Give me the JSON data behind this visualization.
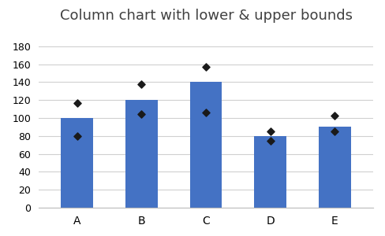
{
  "categories": [
    "A",
    "B",
    "C",
    "D",
    "E"
  ],
  "bar_values": [
    100,
    120,
    140,
    80,
    90
  ],
  "upper_bounds": [
    117,
    138,
    157,
    85,
    103
  ],
  "lower_bounds": [
    80,
    104,
    106,
    75,
    85
  ],
  "bar_color": "#4472C4",
  "marker_color": "#1a1a1a",
  "title": "Column chart with lower & upper bounds",
  "title_fontsize": 13,
  "ylim": [
    0,
    200
  ],
  "yticks": [
    0,
    20,
    40,
    60,
    80,
    100,
    120,
    140,
    160,
    180
  ],
  "background_color": "#ffffff",
  "grid_color": "#d0d0d0"
}
